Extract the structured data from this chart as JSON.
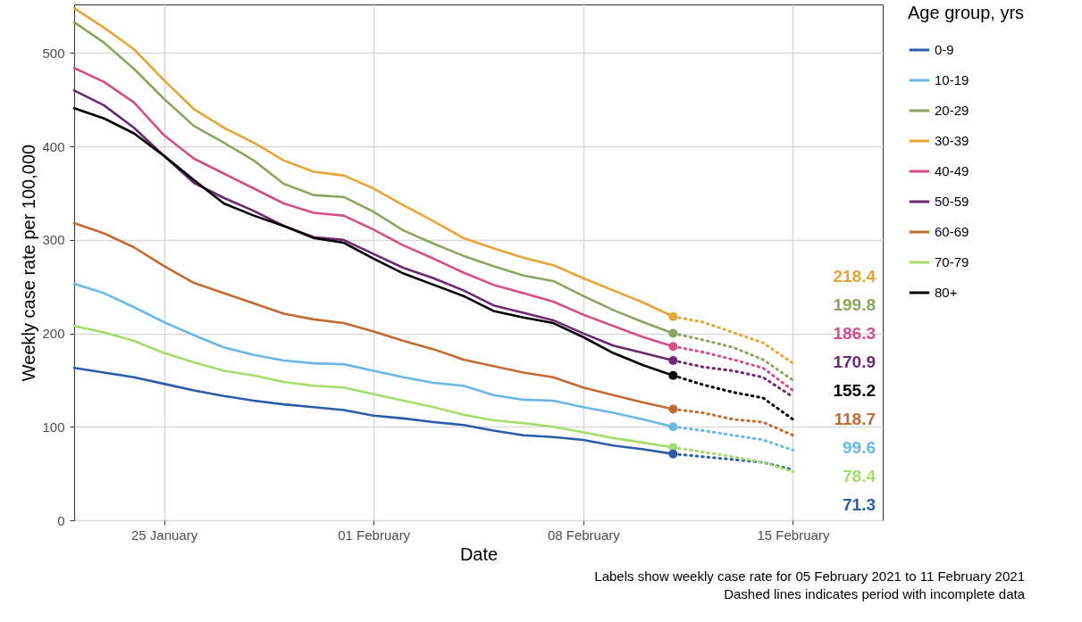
{
  "chart_data": {
    "type": "line",
    "xlabel": "Date",
    "ylabel": "Weekly case rate per 100,000",
    "legend_title": "Age group, yrs",
    "legend": "right",
    "grid": true,
    "annotations": [
      "Labels show weekly case rate for 05 February 2021 to 11 February 2021",
      "Dashed lines indicates period with incomplete data",
      "218.4",
      "199.8",
      "186.3",
      "170.9",
      "155.2",
      "118.7",
      "99.6",
      "78.4",
      "71.3"
    ],
    "xlim": [
      "2021-01-22",
      "2021-02-18"
    ],
    "xticks": [
      {
        "value": "2021-01-25",
        "label": "25 January"
      },
      {
        "value": "2021-02-01",
        "label": "01 February"
      },
      {
        "value": "2021-02-08",
        "label": "08 February"
      },
      {
        "value": "2021-02-15",
        "label": "15 February"
      }
    ],
    "ylim": [
      0,
      552
    ],
    "yticks": [
      0,
      100,
      200,
      300,
      400,
      500
    ],
    "x": [
      "2021-01-22",
      "2021-01-23",
      "2021-01-24",
      "2021-01-25",
      "2021-01-26",
      "2021-01-27",
      "2021-01-28",
      "2021-01-29",
      "2021-01-30",
      "2021-01-31",
      "2021-02-01",
      "2021-02-02",
      "2021-02-03",
      "2021-02-04",
      "2021-02-05",
      "2021-02-06",
      "2021-02-07",
      "2021-02-08",
      "2021-02-09",
      "2021-02-10",
      "2021-02-11"
    ],
    "series": [
      {
        "name": "0-9",
        "color": "#2a5caa",
        "values": [
          163,
          158,
          153,
          146,
          139,
          133,
          128,
          124,
          121,
          118,
          112,
          109,
          105,
          102,
          96,
          91,
          89,
          86,
          80,
          76,
          71
        ]
      },
      {
        "name": "10-19",
        "color": "#6bb7e6",
        "values": [
          253,
          243,
          228,
          212,
          198,
          185,
          177,
          171,
          168,
          167,
          160,
          153,
          147,
          144,
          134,
          129,
          128,
          121,
          115,
          108,
          100
        ]
      },
      {
        "name": "20-29",
        "color": "#8aa660",
        "values": [
          533,
          511,
          483,
          451,
          422,
          404,
          385,
          360,
          348,
          346,
          330,
          310,
          296,
          283,
          272,
          262,
          256,
          240,
          225,
          212,
          200
        ]
      },
      {
        "name": "30-39",
        "color": "#e6a537",
        "values": [
          548,
          527,
          504,
          471,
          440,
          420,
          404,
          385,
          373,
          369,
          355,
          337,
          320,
          302,
          291,
          281,
          273,
          259,
          246,
          233,
          218
        ]
      },
      {
        "name": "40-49",
        "color": "#d44f87",
        "values": [
          484,
          469,
          447,
          412,
          387,
          371,
          355,
          339,
          329,
          326,
          311,
          294,
          280,
          265,
          252,
          243,
          234,
          220,
          208,
          196,
          186
        ]
      },
      {
        "name": "50-59",
        "color": "#6a2a6f",
        "values": [
          460,
          444,
          420,
          390,
          361,
          345,
          331,
          315,
          303,
          300,
          285,
          270,
          259,
          246,
          230,
          222,
          214,
          200,
          187,
          179,
          171
        ]
      },
      {
        "name": "60-69",
        "color": "#c46a35",
        "values": [
          318,
          307,
          292,
          272,
          254,
          243,
          232,
          221,
          215,
          211,
          202,
          192,
          183,
          172,
          165,
          158,
          153,
          142,
          134,
          126,
          119
        ]
      },
      {
        "name": "70-79",
        "color": "#a6dc6c",
        "values": [
          208,
          201,
          192,
          179,
          169,
          160,
          155,
          148,
          144,
          142,
          135,
          128,
          121,
          113,
          107,
          104,
          100,
          94,
          88,
          83,
          78
        ]
      },
      {
        "name": "80+",
        "color": "#000000",
        "values": [
          441,
          430,
          414,
          390,
          364,
          339,
          326,
          315,
          302,
          297,
          280,
          264,
          252,
          240,
          224,
          217,
          211,
          196,
          179,
          166,
          155
        ]
      },
      {
        "color": "#2a5caa",
        "line_style": "dotted",
        "x": [
          "2021-02-11",
          "2021-02-12",
          "2021-02-13",
          "2021-02-14",
          "2021-02-15"
        ],
        "values": [
          71,
          68,
          65,
          62,
          54
        ]
      },
      {
        "color": "#6bb7e6",
        "line_style": "dotted",
        "x": [
          "2021-02-11",
          "2021-02-12",
          "2021-02-13",
          "2021-02-14",
          "2021-02-15"
        ],
        "values": [
          100,
          96,
          91,
          86,
          75
        ]
      },
      {
        "color": "#8aa660",
        "line_style": "dotted",
        "x": [
          "2021-02-11",
          "2021-02-12",
          "2021-02-13",
          "2021-02-14",
          "2021-02-15"
        ],
        "values": [
          200,
          193,
          185,
          172,
          150
        ]
      },
      {
        "color": "#e6a537",
        "line_style": "dotted",
        "x": [
          "2021-02-11",
          "2021-02-12",
          "2021-02-13",
          "2021-02-14",
          "2021-02-15"
        ],
        "values": [
          218,
          212,
          201,
          190,
          168
        ]
      },
      {
        "color": "#d44f87",
        "line_style": "dotted",
        "x": [
          "2021-02-11",
          "2021-02-12",
          "2021-02-13",
          "2021-02-14",
          "2021-02-15"
        ],
        "values": [
          186,
          180,
          172,
          163,
          139
        ]
      },
      {
        "color": "#6a2a6f",
        "line_style": "dotted",
        "x": [
          "2021-02-11",
          "2021-02-12",
          "2021-02-13",
          "2021-02-14",
          "2021-02-15"
        ],
        "values": [
          171,
          164,
          160,
          153,
          132
        ]
      },
      {
        "color": "#c46a35",
        "line_style": "dotted",
        "x": [
          "2021-02-11",
          "2021-02-12",
          "2021-02-13",
          "2021-02-14",
          "2021-02-15"
        ],
        "values": [
          119,
          115,
          108,
          105,
          91
        ]
      },
      {
        "color": "#a6dc6c",
        "line_style": "dotted",
        "x": [
          "2021-02-11",
          "2021-02-12",
          "2021-02-13",
          "2021-02-14",
          "2021-02-15"
        ],
        "values": [
          78,
          73,
          68,
          62,
          52
        ]
      },
      {
        "color": "#000000",
        "line_style": "dotted",
        "x": [
          "2021-02-11",
          "2021-02-12",
          "2021-02-13",
          "2021-02-14",
          "2021-02-15"
        ],
        "values": [
          155,
          145,
          137,
          131,
          108
        ]
      },
      {
        "type": "scatter",
        "marker": "circle",
        "color": "#e6a537",
        "x": [
          "2021-02-11"
        ],
        "values": [
          218
        ]
      },
      {
        "type": "scatter",
        "marker": "circle",
        "color": "#8aa660",
        "x": [
          "2021-02-11"
        ],
        "values": [
          200
        ]
      },
      {
        "type": "scatter",
        "marker": "circle",
        "color": "#d44f87",
        "x": [
          "2021-02-11"
        ],
        "values": [
          186
        ]
      },
      {
        "type": "scatter",
        "marker": "circle",
        "color": "#6a2a6f",
        "x": [
          "2021-02-11"
        ],
        "values": [
          171
        ]
      },
      {
        "type": "scatter",
        "marker": "circle",
        "color": "#000000",
        "x": [
          "2021-02-11"
        ],
        "values": [
          155
        ]
      },
      {
        "type": "scatter",
        "marker": "circle",
        "color": "#c46a35",
        "x": [
          "2021-02-11"
        ],
        "values": [
          119
        ]
      },
      {
        "type": "scatter",
        "marker": "circle",
        "color": "#6bb7e6",
        "x": [
          "2021-02-11"
        ],
        "values": [
          100
        ]
      },
      {
        "type": "scatter",
        "marker": "circle",
        "color": "#a6dc6c",
        "x": [
          "2021-02-11"
        ],
        "values": [
          78
        ]
      },
      {
        "type": "scatter",
        "marker": "circle",
        "color": "#2a5caa",
        "x": [
          "2021-02-11"
        ],
        "values": [
          71
        ]
      }
    ]
  }
}
